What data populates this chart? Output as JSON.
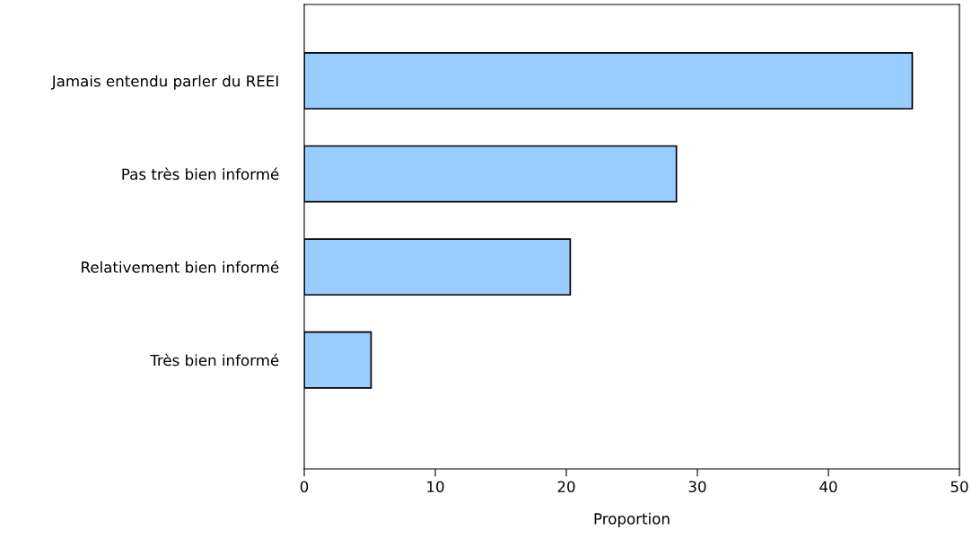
{
  "chart_data": {
    "type": "bar",
    "orientation": "horizontal",
    "xlabel": "Proportion",
    "categories": [
      "Jamais entendu parler du REEI",
      "Pas très bien informé",
      "Relativement bien informé",
      "Très bien informé"
    ],
    "values": [
      46.4,
      28.4,
      20.3,
      5.1
    ],
    "color": "#99ccff",
    "xlim": [
      0,
      50
    ],
    "xticks": [
      0,
      10,
      20,
      30,
      40,
      50
    ],
    "grid": false,
    "legend": false
  }
}
